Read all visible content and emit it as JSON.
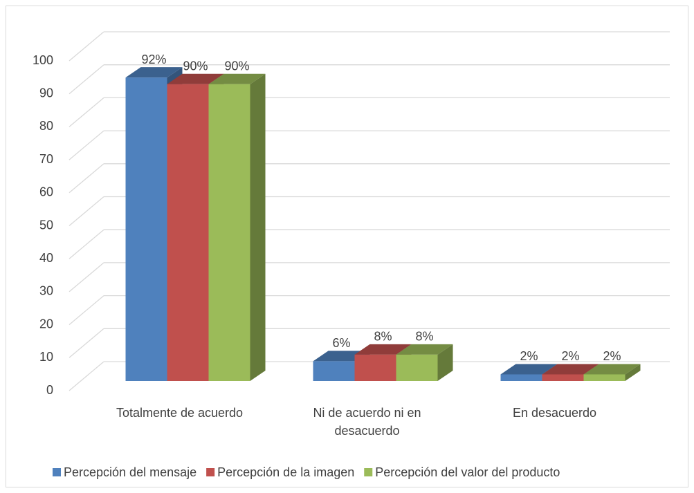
{
  "chart_data": {
    "type": "bar3d",
    "categories": [
      "Totalmente de acuerdo",
      "Ni de acuerdo ni en desacuerdo",
      "En desacuerdo"
    ],
    "series": [
      {
        "name": "Percepción del mensaje",
        "color": "#4f81bd",
        "values": [
          92,
          6,
          2
        ],
        "value_labels": [
          "92%",
          "6%",
          "2%"
        ]
      },
      {
        "name": "Percepción de la imagen",
        "color": "#c0504d",
        "values": [
          90,
          8,
          2
        ],
        "value_labels": [
          "90%",
          "8%",
          "2%"
        ]
      },
      {
        "name": "Percepción del valor del producto",
        "color": "#9bbb59",
        "values": [
          90,
          8,
          2
        ],
        "value_labels": [
          "90%",
          "8%",
          "2%"
        ]
      }
    ],
    "ylim": [
      0,
      100
    ],
    "yticks": [
      0,
      10,
      20,
      30,
      40,
      50,
      60,
      70,
      80,
      90,
      100
    ],
    "grid": true,
    "legend": "bottom"
  }
}
